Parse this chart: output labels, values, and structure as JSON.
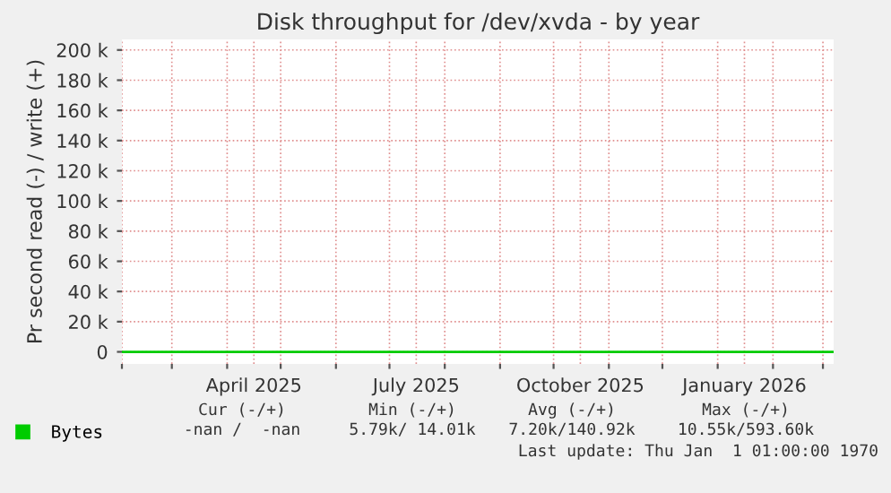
{
  "chart_data": {
    "type": "line",
    "title": "Disk throughput for /dev/xvda - by year",
    "ylabel": "Pr second read (-) / write (+)",
    "x": [
      "2025-02-01",
      "2026-03-07"
    ],
    "series": [
      {
        "name": "Bytes",
        "color": "#00cc00",
        "values": [
          0,
          0
        ]
      }
    ],
    "xlim": [
      "2025-02-01",
      "2026-03-07"
    ],
    "xticks": [
      {
        "value": "2025-02-01",
        "label": null
      },
      {
        "value": "2025-03-01",
        "label": null
      },
      {
        "value": "2025-04-01",
        "label": null
      },
      {
        "value": "2025-04-16",
        "label": "April 2025"
      },
      {
        "value": "2025-05-01",
        "label": null
      },
      {
        "value": "2025-06-01",
        "label": null
      },
      {
        "value": "2025-07-01",
        "label": null
      },
      {
        "value": "2025-07-16",
        "label": "July 2025"
      },
      {
        "value": "2025-08-01",
        "label": null
      },
      {
        "value": "2025-09-01",
        "label": null
      },
      {
        "value": "2025-10-01",
        "label": null
      },
      {
        "value": "2025-10-16",
        "label": "October 2025"
      },
      {
        "value": "2025-11-01",
        "label": null
      },
      {
        "value": "2025-12-01",
        "label": null
      },
      {
        "value": "2026-01-01",
        "label": null
      },
      {
        "value": "2026-01-16",
        "label": "January 2026"
      },
      {
        "value": "2026-02-01",
        "label": null
      },
      {
        "value": "2026-03-01",
        "label": null
      }
    ],
    "ylim": [
      -8000,
      207000
    ],
    "yticks": [
      0,
      {
        "value": 20000,
        "label": "20 k"
      },
      {
        "value": 40000,
        "label": "40 k"
      },
      {
        "value": 60000,
        "label": "60 k"
      },
      {
        "value": 80000,
        "label": "80 k"
      },
      {
        "value": 100000,
        "label": "100 k"
      },
      {
        "value": 120000,
        "label": "120 k"
      },
      {
        "value": 140000,
        "label": "140 k"
      },
      {
        "value": 160000,
        "label": "160 k"
      },
      {
        "value": 180000,
        "label": "180 k"
      },
      {
        "value": 200000,
        "label": "200 k"
      }
    ],
    "grid": true,
    "legend": "bottom left",
    "marker": "none",
    "line_style": "solid",
    "annotations": [
      "Cur (-/+)",
      "Min (-/+)",
      "Avg (-/+)",
      "Max (-/+)",
      "-nan /  -nan",
      "5.79k/ 14.01k",
      "7.20k/140.92k",
      "10.55k/593.60k",
      "Last update: Thu Jan  1 01:00:00 1970"
    ]
  }
}
